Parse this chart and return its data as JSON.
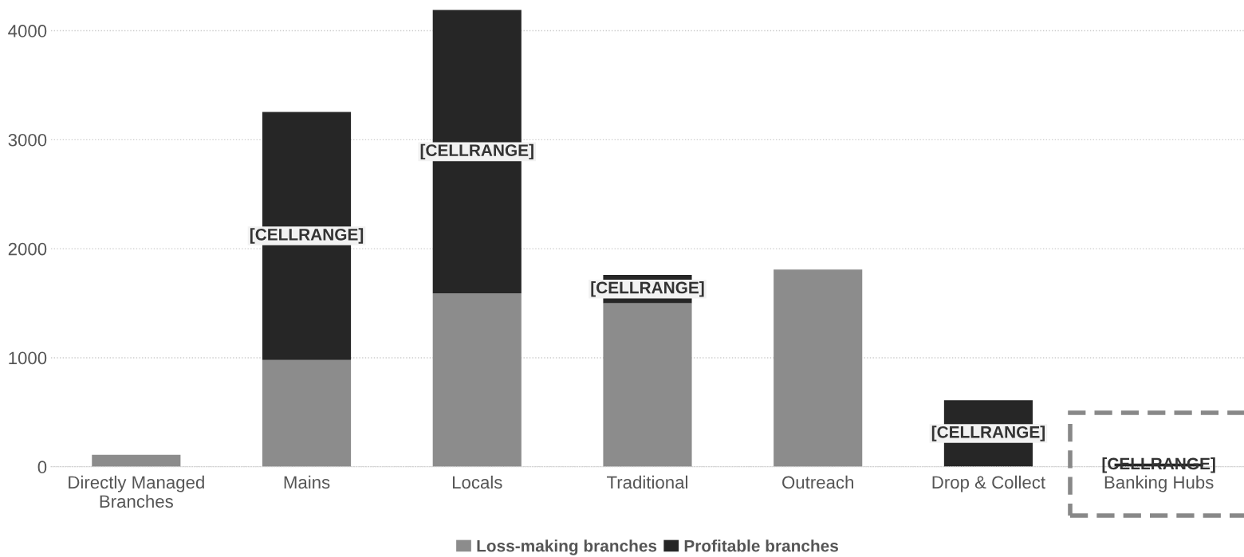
{
  "chart_data": {
    "type": "bar",
    "stacked": true,
    "categories": [
      "Directly Managed\nBranches",
      "Mains",
      "Locals",
      "Traditional",
      "Outreach",
      "Drop & Collect",
      "Banking Hubs"
    ],
    "series": [
      {
        "name": "Loss-making branches",
        "color": "#8c8c8c",
        "values": [
          110,
          980,
          1590,
          1500,
          1810,
          0,
          0
        ]
      },
      {
        "name": "Profitable branches",
        "color": "#262626",
        "values": [
          0,
          2275,
          2600,
          260,
          0,
          610,
          30
        ],
        "value_labels": [
          null,
          "[CELLRANGE]",
          "[CELLRANGE]",
          "[CELLRANGE]",
          null,
          "[CELLRANGE]",
          "[CELLRANGE]"
        ]
      }
    ],
    "ylim": [
      0,
      4200
    ],
    "yticks": [
      0,
      1000,
      2000,
      3000,
      4000
    ],
    "grid": "y",
    "legend": "bottom"
  }
}
